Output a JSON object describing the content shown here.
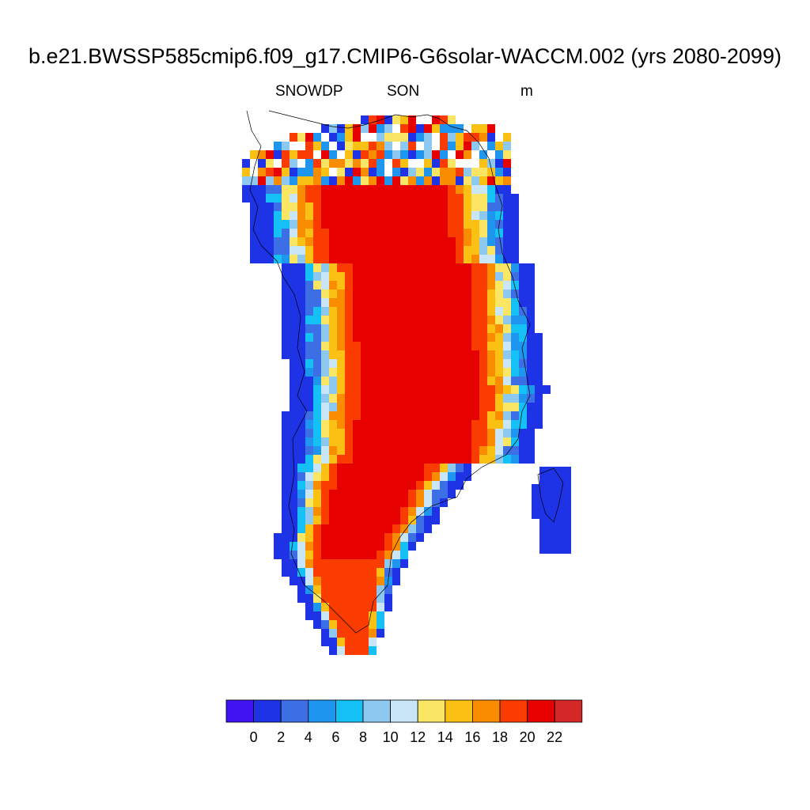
{
  "title": "b.e21.BWSSP585cmip6.f09_g17.CMIP6-G6solar-WACCM.002 (yrs 2080-2099)",
  "subtitle": {
    "variable": "SNOWDP",
    "season": "SON",
    "units": "m"
  },
  "colors": {
    "palette": [
      "#3f14f0",
      "#1e32e6",
      "#3c6ee6",
      "#1e96f0",
      "#14c0f5",
      "#8cc8f0",
      "#c8e6f8",
      "#fae664",
      "#fac014",
      "#fa8c00",
      "#fa3c00",
      "#e60000",
      "#d22828"
    ],
    "coastline": "#000000",
    "missing": "#ffffff"
  },
  "chart_data": {
    "type": "heatmap",
    "title": "b.e21.BWSSP585cmip6.f09_g17.CMIP6-G6solar-WACCM.002 (yrs 2080-2099)",
    "variable": "SNOWDP",
    "season": "SON",
    "units": "m",
    "region": "Greenland",
    "colorbar": {
      "tick_labels": [
        "0",
        "2",
        "4",
        "6",
        "8",
        "10",
        "12",
        "14",
        "16",
        "18",
        "20",
        "22"
      ],
      "bins": 13,
      "orientation": "horizontal",
      "placement": "bottom"
    },
    "field_summary": {
      "interior_max_bin": "above 20",
      "margin_min_bin": "0 to 2"
    }
  }
}
